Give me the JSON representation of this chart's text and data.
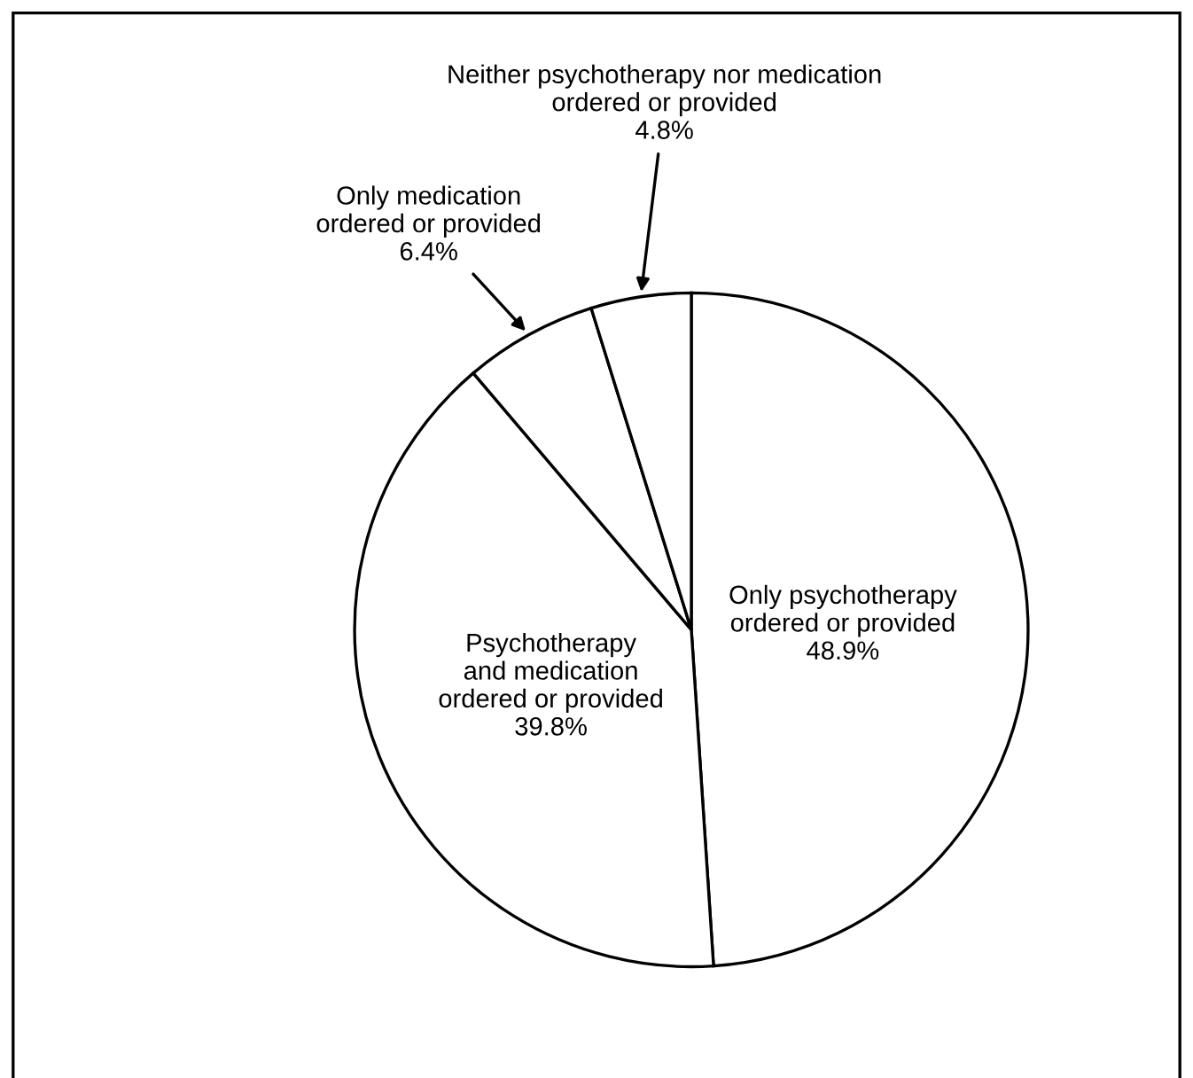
{
  "chart_data": {
    "type": "pie",
    "categories": [
      "Only psychotherapy\nordered or provided",
      "Psychotherapy\nand medication\nordered or provided",
      "Only medication\nordered or provided",
      "Neither psychotherapy nor medication\nordered or provided"
    ],
    "values": [
      48.9,
      39.8,
      6.4,
      4.8
    ],
    "colors": [
      "#ffffff",
      "#ffffff",
      "#ffffff",
      "#ffffff"
    ],
    "value_labels": [
      "48.9%",
      "39.8%",
      "6.4%",
      "4.8%"
    ]
  }
}
